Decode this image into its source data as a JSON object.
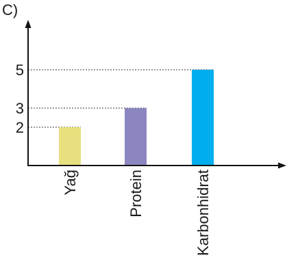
{
  "panel_label": "C)",
  "chart_data": {
    "type": "bar",
    "categories": [
      "Yağ",
      "Protein",
      "Karbonhidrat"
    ],
    "values": [
      2,
      3,
      5
    ],
    "colors": [
      "#e8e07e",
      "#8c86c0",
      "#00aeef"
    ],
    "yticks": [
      2,
      3,
      5
    ],
    "ylim": [
      0,
      6
    ],
    "guide_lines": "dashed",
    "grid": false,
    "legend": "none",
    "axis_arrows": true,
    "axis_color": "#111111"
  }
}
